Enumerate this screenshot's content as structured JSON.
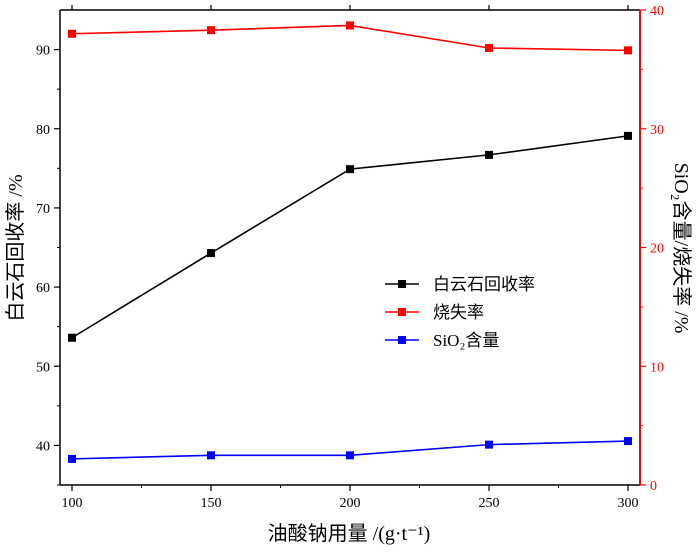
{
  "chart_data": {
    "type": "line",
    "xlabel": "油酸钠用量 /(g·t⁻¹)",
    "ylabel_left": "白云石回收率 /%",
    "ylabel_right": "SiO₂含量/烧失率 /%",
    "x": [
      100,
      150,
      200,
      250,
      300
    ],
    "xlim": [
      100,
      300
    ],
    "ylim_left": [
      35,
      95
    ],
    "ylim_right": [
      0,
      40
    ],
    "x_ticks": [
      "100",
      "150",
      "200",
      "250",
      "300"
    ],
    "y_left_ticks": [
      "40",
      "50",
      "60",
      "70",
      "80",
      "90"
    ],
    "y_right_ticks": [
      "0",
      "10",
      "20",
      "30",
      "40"
    ],
    "grid": false,
    "legend_position": "center-right",
    "series": [
      {
        "name": "白云石回收率",
        "axis": "left",
        "color": "#000000",
        "values": [
          53.6,
          64.3,
          74.9,
          76.7,
          79.1
        ]
      },
      {
        "name": "烧失率",
        "axis": "right",
        "color": "#ff0000",
        "values": [
          38.0,
          38.3,
          38.7,
          36.8,
          36.6
        ]
      },
      {
        "name": "SiO₂含量",
        "axis": "right",
        "color": "#0000ff",
        "values": [
          2.2,
          2.5,
          2.5,
          3.4,
          3.7
        ]
      }
    ]
  }
}
